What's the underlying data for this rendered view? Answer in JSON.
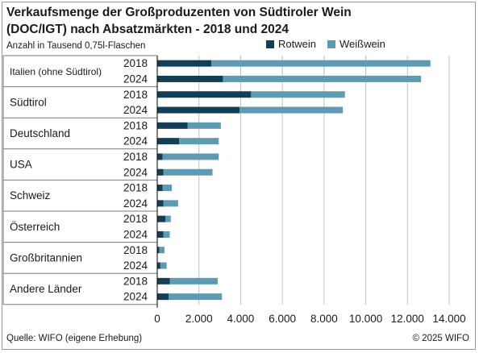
{
  "title": "Verkaufsmenge der Großproduzenten von Südtiroler Wein (DOC/IGT) nach Absatzmärkten - 2018 und 2024",
  "subtitle": "Anzahl in Tausend 0,75l-Flaschen",
  "footer": {
    "source": "Quelle: WIFO (eigene Erhebung)",
    "copyright": "© 2025 WIFO"
  },
  "colors": {
    "rotwein": "#143e55",
    "weisswein": "#5e9bb3",
    "grid": "#bfbfbf",
    "axis": "#000000",
    "divider": "#7a7a7a"
  },
  "chart_data": {
    "type": "bar",
    "orientation": "horizontal",
    "stacked": true,
    "xlim": [
      0,
      14000
    ],
    "xticks": [
      0,
      2000,
      4000,
      6000,
      8000,
      10000,
      12000,
      14000
    ],
    "xtick_labels": [
      "0",
      "2.000",
      "4.000",
      "6.000",
      "8.000",
      "10.000",
      "12.000",
      "14.000"
    ],
    "grid": "vertical",
    "legend": "top-right",
    "series_names": [
      "Rotwein",
      "Weißwein"
    ],
    "groups": [
      {
        "name": "Italien (ohne Südtirol)",
        "rows": [
          {
            "year": "2018",
            "rotwein": 2600,
            "weisswein": 10500
          },
          {
            "year": "2024",
            "rotwein": 3150,
            "weisswein": 9500
          }
        ]
      },
      {
        "name": "Südtirol",
        "rows": [
          {
            "year": "2018",
            "rotwein": 4500,
            "weisswein": 4500
          },
          {
            "year": "2024",
            "rotwein": 3950,
            "weisswein": 4950
          }
        ]
      },
      {
        "name": "Deutschland",
        "rows": [
          {
            "year": "2018",
            "rotwein": 1450,
            "weisswein": 1600
          },
          {
            "year": "2024",
            "rotwein": 1050,
            "weisswein": 1900
          }
        ]
      },
      {
        "name": "USA",
        "rows": [
          {
            "year": "2018",
            "rotwein": 250,
            "weisswein": 2700
          },
          {
            "year": "2024",
            "rotwein": 300,
            "weisswein": 2350
          }
        ]
      },
      {
        "name": "Schweiz",
        "rows": [
          {
            "year": "2018",
            "rotwein": 250,
            "weisswein": 450
          },
          {
            "year": "2024",
            "rotwein": 300,
            "weisswein": 700
          }
        ]
      },
      {
        "name": "Österreich",
        "rows": [
          {
            "year": "2018",
            "rotwein": 400,
            "weisswein": 250
          },
          {
            "year": "2024",
            "rotwein": 300,
            "weisswein": 300
          }
        ]
      },
      {
        "name": "Großbritannien",
        "rows": [
          {
            "year": "2018",
            "rotwein": 100,
            "weisswein": 250
          },
          {
            "year": "2024",
            "rotwein": 150,
            "weisswein": 300
          }
        ]
      },
      {
        "name": "Andere Länder",
        "rows": [
          {
            "year": "2018",
            "rotwein": 600,
            "weisswein": 2300
          },
          {
            "year": "2024",
            "rotwein": 550,
            "weisswein": 2550
          }
        ]
      }
    ]
  }
}
